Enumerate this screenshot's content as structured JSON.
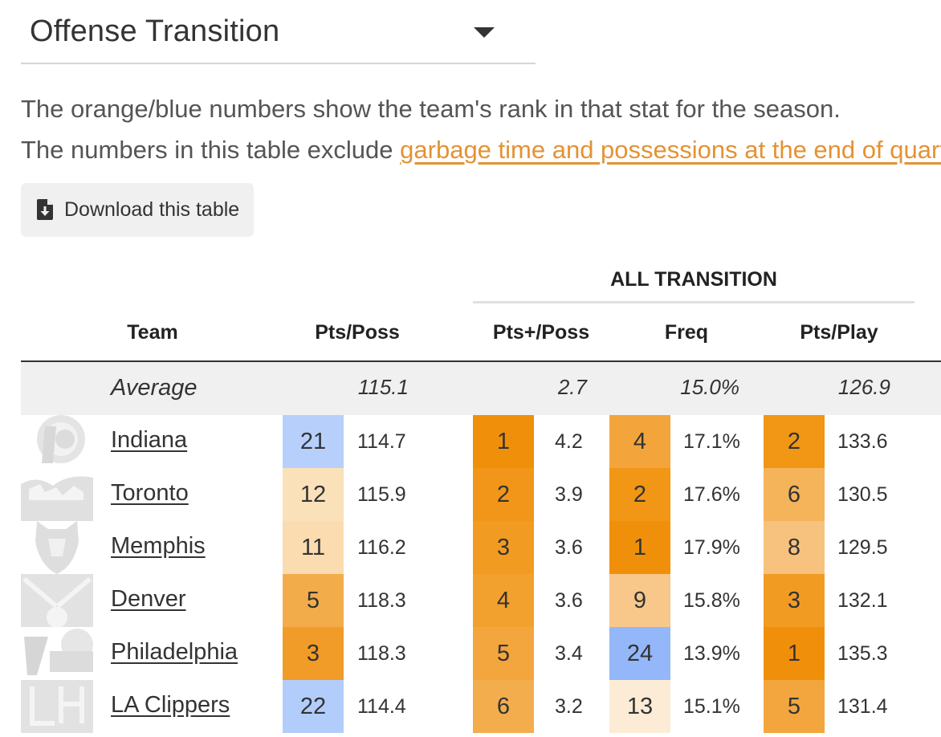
{
  "selector": {
    "label": "Offense Transition"
  },
  "description": {
    "line1": "The orange/blue numbers show the team's rank in that stat for the season.",
    "line2_prefix": "The numbers in this table exclude ",
    "line2_link": "garbage time and possessions at the end of quart"
  },
  "download": {
    "label": "Download this table",
    "icon": "file-download-icon"
  },
  "table": {
    "group_header": "ALL TRANSITION",
    "columns": {
      "team": "Team",
      "pts_poss": "Pts/Poss",
      "pts_plus_poss": "Pts+/Poss",
      "freq": "Freq",
      "pts_play": "Pts/Play"
    },
    "average": {
      "label": "Average",
      "pts_poss": "115.1",
      "pts_plus_poss": "2.7",
      "freq": "15.0%",
      "pts_play": "126.9"
    },
    "rows": [
      {
        "team": "Indiana",
        "logo": "pacers-logo-icon",
        "pts_poss_rank": "21",
        "pts_poss": "114.7",
        "pts_poss_color": "#b7d0fb",
        "pts_plus_rank": "1",
        "pts_plus": "4.2",
        "pts_plus_color": "#f0900a",
        "freq_rank": "4",
        "freq": "17.1%",
        "freq_color": "#f3a53c",
        "pts_play_rank": "2",
        "pts_play": "133.6",
        "pts_play_color": "#f19615"
      },
      {
        "team": "Toronto",
        "logo": "raptors-logo-icon",
        "pts_poss_rank": "12",
        "pts_poss": "115.9",
        "pts_poss_color": "#fbe1ba",
        "pts_plus_rank": "2",
        "pts_plus": "3.9",
        "pts_plus_color": "#f19618",
        "freq_rank": "2",
        "freq": "17.6%",
        "freq_color": "#f19615",
        "pts_play_rank": "6",
        "pts_play": "130.5",
        "pts_play_color": "#f5b35a"
      },
      {
        "team": "Memphis",
        "logo": "grizzlies-logo-icon",
        "pts_poss_rank": "11",
        "pts_poss": "116.2",
        "pts_poss_color": "#fadcb0",
        "pts_plus_rank": "3",
        "pts_plus": "3.6",
        "pts_plus_color": "#f29b23",
        "freq_rank": "1",
        "freq": "17.9%",
        "freq_color": "#f0900a",
        "pts_play_rank": "8",
        "pts_play": "129.5",
        "pts_play_color": "#f7c27d"
      },
      {
        "team": "Denver",
        "logo": "nuggets-logo-icon",
        "pts_poss_rank": "5",
        "pts_poss": "118.3",
        "pts_poss_color": "#f3ac4a",
        "pts_plus_rank": "4",
        "pts_plus": "3.6",
        "pts_plus_color": "#f2a02e",
        "freq_rank": "9",
        "freq": "15.8%",
        "freq_color": "#f7c88a",
        "pts_play_rank": "3",
        "pts_play": "132.1",
        "pts_play_color": "#f29b23"
      },
      {
        "team": "Philadelphia",
        "logo": "76ers-logo-icon",
        "pts_poss_rank": "3",
        "pts_poss": "118.3",
        "pts_poss_color": "#f19c28",
        "pts_plus_rank": "5",
        "pts_plus": "3.4",
        "pts_plus_color": "#f3a63d",
        "freq_rank": "24",
        "freq": "13.9%",
        "freq_color": "#93b7f8",
        "pts_play_rank": "1",
        "pts_play": "135.3",
        "pts_play_color": "#f0900a"
      },
      {
        "team": "LA Clippers",
        "logo": "clippers-logo-icon",
        "pts_poss_rank": "22",
        "pts_poss": "114.4",
        "pts_poss_color": "#b2cdfb",
        "pts_plus_rank": "6",
        "pts_plus": "3.2",
        "pts_plus_color": "#f4ad4d",
        "freq_rank": "13",
        "freq": "15.1%",
        "freq_color": "#fcecd6",
        "pts_play_rank": "5",
        "pts_play": "131.4",
        "pts_play_color": "#f3a63d"
      }
    ]
  }
}
